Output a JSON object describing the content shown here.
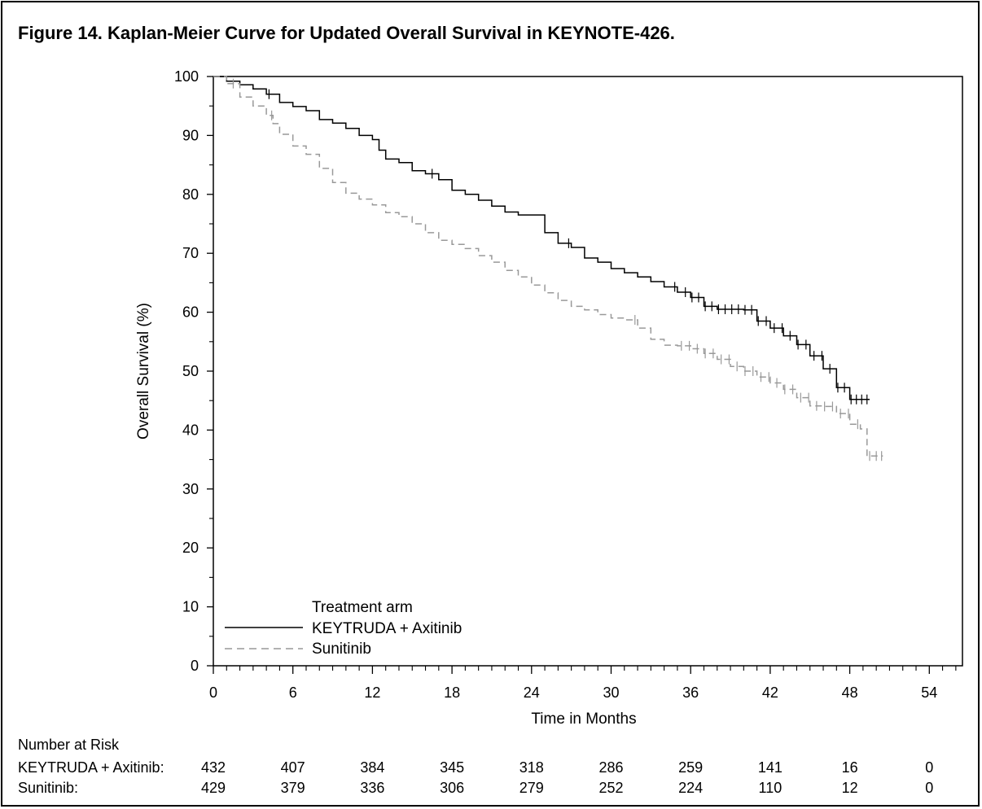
{
  "figure_title": "Figure 14. Kaplan-Meier Curve for Updated Overall Survival in KEYNOTE-426.",
  "chart_data": {
    "type": "line",
    "title": "",
    "xlabel": "Time in Months",
    "ylabel": "Overall Survival (%)",
    "xlim": [
      0,
      56.5
    ],
    "ylim": [
      0,
      100
    ],
    "x_ticks": [
      0,
      6,
      12,
      18,
      24,
      30,
      36,
      42,
      48,
      54
    ],
    "y_ticks": [
      0,
      10,
      20,
      30,
      40,
      50,
      60,
      70,
      80,
      90,
      100
    ],
    "grid": false,
    "legend": {
      "title": "Treatment arm",
      "placement": "bottom-left",
      "entries": [
        "KEYTRUDA + Axitinib",
        "Sunitinib"
      ]
    },
    "series": [
      {
        "name": "KEYTRUDA + Axitinib",
        "style": "solid",
        "color": "#000000",
        "x": [
          0,
          1,
          2,
          3,
          4,
          5,
          6,
          7,
          8,
          9,
          10,
          11,
          12,
          12.5,
          13,
          14,
          15,
          16,
          17,
          18,
          19,
          20,
          21,
          22,
          23,
          24,
          25,
          26,
          27,
          28,
          29,
          30,
          31,
          32,
          33,
          34,
          35,
          36,
          37,
          38,
          39,
          40,
          41,
          42,
          43,
          44,
          45,
          46,
          47,
          48,
          49.5
        ],
        "y": [
          100,
          99.2,
          98.6,
          97.9,
          97,
          95.6,
          94.9,
          94.2,
          92.7,
          92.1,
          91.2,
          90,
          89.3,
          87.5,
          86,
          85.4,
          84,
          83.5,
          82.5,
          80.7,
          80,
          79,
          78,
          77,
          76.5,
          76.5,
          73.5,
          71.7,
          71,
          69.2,
          68.5,
          67.4,
          66.7,
          66,
          65.2,
          64.3,
          63.4,
          62.5,
          61,
          60.5,
          60.5,
          60.4,
          58.5,
          57.3,
          56,
          54.5,
          52.6,
          50.4,
          47.2,
          45.2,
          45.2
        ],
        "censor_marks": [
          4.2,
          16.5,
          26.8,
          34.8,
          35.6,
          36.1,
          36.6,
          37.1,
          37.6,
          38.1,
          38.6,
          39.1,
          39.6,
          40.1,
          40.6,
          41.1,
          41.7,
          42.3,
          42.9,
          43.5,
          44.1,
          44.7,
          45.3,
          45.9,
          46.5,
          47.1,
          47.6,
          48.1,
          48.5,
          48.9,
          49.3
        ]
      },
      {
        "name": "Sunitinib",
        "style": "dashed",
        "color": "#999999",
        "x": [
          0,
          1,
          2,
          3,
          4,
          4.5,
          5,
          6,
          7,
          8,
          9,
          10,
          11,
          12,
          13,
          14,
          15,
          16,
          17,
          18,
          19,
          20,
          21,
          22,
          23,
          24,
          25,
          26,
          27,
          28,
          29,
          30,
          31,
          32,
          33,
          34,
          35,
          36,
          37,
          38,
          39,
          40,
          41,
          42,
          43,
          44,
          45,
          46,
          47,
          48,
          48.8,
          49.3,
          50.5
        ],
        "y": [
          100,
          98.8,
          96.5,
          95,
          93.4,
          92,
          90.2,
          88.2,
          86.8,
          84.4,
          82,
          80.2,
          79.2,
          78.2,
          76.9,
          76.2,
          75,
          73.5,
          72.2,
          71.5,
          70.8,
          69.6,
          68.5,
          67.1,
          66,
          64.6,
          63.3,
          62,
          61,
          60.4,
          59.6,
          59,
          58.7,
          57.3,
          55.4,
          54.4,
          54.3,
          53.8,
          53,
          52,
          50.8,
          50,
          49,
          48,
          46.9,
          45.5,
          44.1,
          44,
          42.8,
          41,
          40.2,
          35.6,
          35.6
        ],
        "censor_marks": [
          1.5,
          4.4,
          31.8,
          35.3,
          35.9,
          36.5,
          37.1,
          37.7,
          38.3,
          38.9,
          39.5,
          40.1,
          40.7,
          41.3,
          41.9,
          42.5,
          43.1,
          43.7,
          44.3,
          44.9,
          45.5,
          46.1,
          46.7,
          47.3,
          47.9,
          48.6,
          49.5,
          50.0,
          50.4
        ]
      }
    ]
  },
  "risk_table": {
    "heading": "Number at Risk",
    "times": [
      0,
      6,
      12,
      18,
      24,
      30,
      36,
      42,
      48,
      54
    ],
    "rows": [
      {
        "label": "KEYTRUDA + Axitinib:",
        "values": [
          "432",
          "407",
          "384",
          "345",
          "318",
          "286",
          "259",
          "141",
          "16",
          "0"
        ]
      },
      {
        "label": "Sunitinib:",
        "values": [
          "429",
          "379",
          "336",
          "306",
          "279",
          "252",
          "224",
          "110",
          "12",
          "0"
        ]
      }
    ]
  }
}
